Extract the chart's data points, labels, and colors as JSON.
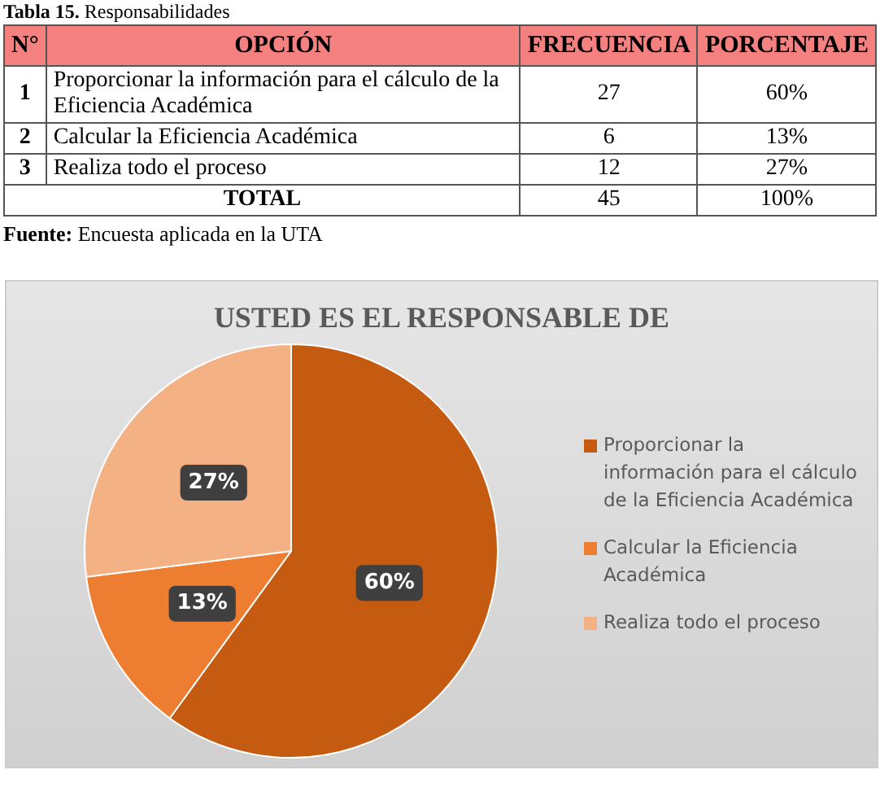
{
  "chart_data": [
    {
      "type": "other",
      "title": "Tabla 15. Responsabilidades",
      "ylabel": "N°",
      "xlabel": "OPCIÓN",
      "categories": [
        "Proporcionar la información para el cálculo de la Eficiencia Académica",
        "Calcular la Eficiencia Académica",
        "Realiza todo el proceso"
      ],
      "series": [
        {
          "name": "FRECUENCIA",
          "values": [
            27,
            6,
            12
          ],
          "value_labels": [
            "27",
            "6",
            "12"
          ]
        },
        {
          "name": "PORCENTAJE",
          "values": [
            60,
            13,
            27
          ],
          "value_labels": [
            "60%",
            "13%",
            "27%"
          ]
        }
      ],
      "totals": [
        "45",
        "100%"
      ],
      "annotations": [
        "1",
        "2",
        "3",
        "TOTAL",
        "Fuente: Encuesta aplicada en la UTA"
      ]
    },
    {
      "type": "pie",
      "title": "USTED ES EL RESPONSABLE DE",
      "categories": [
        "Proporcionar la información para el cálculo de la Eficiencia Académica",
        "Calcular la Eficiencia Académica",
        "Realiza todo el proceso"
      ],
      "values": [
        60,
        13,
        27
      ],
      "colors": [
        "#c55a11",
        "#ed7d31",
        "#f4b183"
      ],
      "value_labels": [
        "60%",
        "13%",
        "27%"
      ],
      "legend": "right"
    }
  ]
}
